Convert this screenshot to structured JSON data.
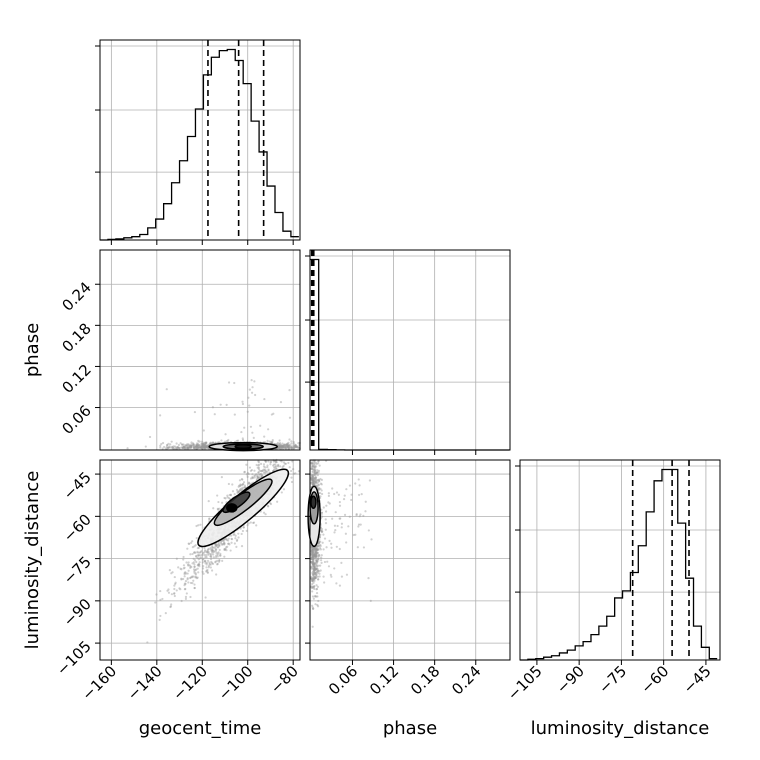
{
  "chart_data": {
    "type": "corner",
    "parameters": [
      "geocent_time",
      "phase",
      "luminosity_distance"
    ],
    "grid": true,
    "colors": {
      "line": "#000000",
      "grid": "#b0b0b0",
      "scatter": "#999999"
    },
    "ranges": {
      "geocent_time": [
        -165,
        -77
      ],
      "phase": [
        -0.002,
        0.29
      ],
      "luminosity_distance": [
        -111,
        -40
      ]
    },
    "ticks": {
      "geocent_time": [
        -160,
        -140,
        -120,
        -100,
        -80
      ],
      "phase": [
        0.06,
        0.12,
        0.18,
        0.24
      ],
      "luminosity_distance": [
        -105,
        -90,
        -75,
        -60,
        -45
      ]
    },
    "tick_labels": {
      "geocent_time": [
        "−160",
        "−140",
        "−120",
        "−100",
        "−80"
      ],
      "phase": [
        "0.06",
        "0.12",
        "0.18",
        "0.24"
      ],
      "luminosity_distance": [
        "−105",
        "−90",
        "−75",
        "−60",
        "−45"
      ]
    },
    "histograms": {
      "geocent_time": {
        "bin_edges": [
          -165,
          -161.5,
          -158,
          -154.5,
          -151,
          -147.5,
          -144,
          -140.5,
          -137,
          -133.5,
          -130,
          -126.5,
          -123,
          -119.5,
          -116,
          -112.5,
          -109,
          -105.5,
          -102,
          -98.5,
          -95,
          -91.5,
          -88,
          -84.5,
          -81,
          -77.5
        ],
        "counts": [
          0,
          0.5,
          1,
          2,
          3,
          5,
          11,
          19,
          33,
          52,
          72,
          94,
          119,
          150,
          166,
          172,
          173,
          163,
          142,
          108,
          80,
          49,
          25,
          8,
          3
        ],
        "quantiles": [
          -117.5,
          -104,
          -93
        ]
      },
      "phase": {
        "bin_edges": [
          -0.002,
          0.0107,
          0.0233,
          0.036,
          0.0487,
          0.0613,
          0.074,
          0.0867,
          0.0993,
          0.112,
          0.1247,
          0.1373,
          0.15,
          0.1627,
          0.1753,
          0.188,
          0.2007,
          0.2133,
          0.226,
          0.2387,
          0.2513,
          0.264,
          0.2767,
          0.2893
        ],
        "counts": [
          190,
          0.6,
          0.3,
          0.1,
          0,
          0,
          0,
          0,
          0,
          0,
          0,
          0,
          0,
          0,
          0,
          0,
          0,
          0,
          0,
          0,
          0,
          0,
          0
        ],
        "quantiles": [
          0.0005,
          0.0015,
          0.0035
        ]
      },
      "luminosity_distance": {
        "bin_edges": [
          -111,
          -108.2,
          -105.4,
          -102.6,
          -99.8,
          -97,
          -94.2,
          -91.4,
          -88.6,
          -85.8,
          -83,
          -80.2,
          -77.4,
          -74.6,
          -71.8,
          -69,
          -66.2,
          -63.4,
          -60.6,
          -57.8,
          -55,
          -52.2,
          -49.4,
          -46.6,
          -43.8,
          -41
        ],
        "counts": [
          0,
          0.5,
          1,
          2,
          3,
          5,
          7,
          10,
          13,
          18,
          24,
          31,
          44,
          49,
          62,
          81,
          105,
          127,
          135,
          135,
          97,
          58,
          24,
          9,
          1
        ],
        "quantiles": [
          -71,
          -57,
          -51
        ]
      }
    },
    "panels_2d": [
      {
        "x": "geocent_time",
        "y": "phase"
      },
      {
        "x": "geocent_time",
        "y": "luminosity_distance"
      },
      {
        "x": "phase",
        "y": "luminosity_distance"
      }
    ]
  }
}
